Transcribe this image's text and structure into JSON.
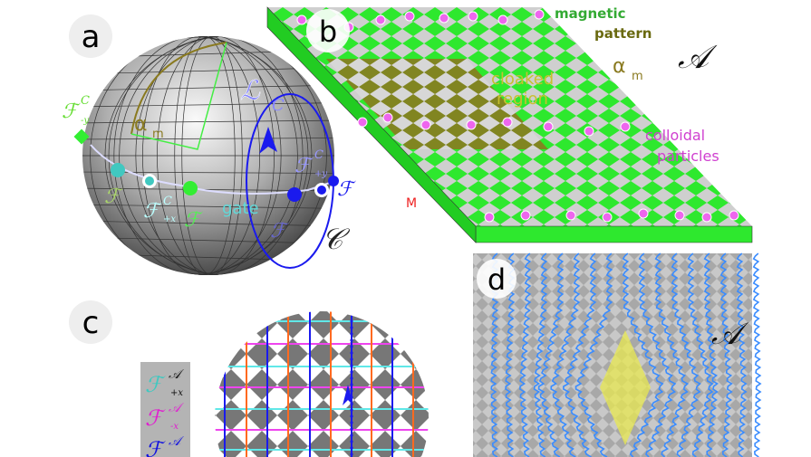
{
  "panels": {
    "a": {
      "label": "a",
      "f_neg_y": "ℱ",
      "f_neg_y_sup": "C",
      "f_neg_y_sub": "-y",
      "f_plus_x": "ℱ",
      "f_plus_x_sup": "C",
      "f_plus_x_sub": "+x",
      "f_plus_y": "ℱ",
      "f_plus_y_sup": "C",
      "f_plus_y_sub": "+y",
      "alpha": "α",
      "alpha_sub": "m",
      "loop": "ℒ",
      "loop_sub": "C",
      "gate": "gate",
      "space": "𝒞"
    },
    "b": {
      "label": "b",
      "magnetic": "magnetic",
      "pattern": "pattern",
      "cloaked": "cloaked",
      "region": "region",
      "colloidal": "colloidal",
      "particles": "particles",
      "alpha": "α",
      "alpha_sub": "m",
      "M": "M",
      "space": "𝒜"
    },
    "c": {
      "label": "c",
      "legend": [
        {
          "f": "ℱ",
          "sup": "𝒜",
          "sub": "+x",
          "color": "#40c8c0"
        },
        {
          "f": "ℱ",
          "sup": "𝒜",
          "sub": "-x",
          "color": "#e020d0"
        },
        {
          "f": "ℱ",
          "sup": "𝒜",
          "sub": "+y",
          "color": "#1010e0"
        }
      ]
    },
    "d": {
      "label": "d",
      "space": "𝒜"
    }
  },
  "colors": {
    "green": "#33ee33",
    "olive": "#8a7a20",
    "magenta": "#ee44ee",
    "blue": "#1a1aee",
    "cyan": "#60e8e8",
    "orange": "#ff6a20",
    "yellow": "#e8e850"
  }
}
